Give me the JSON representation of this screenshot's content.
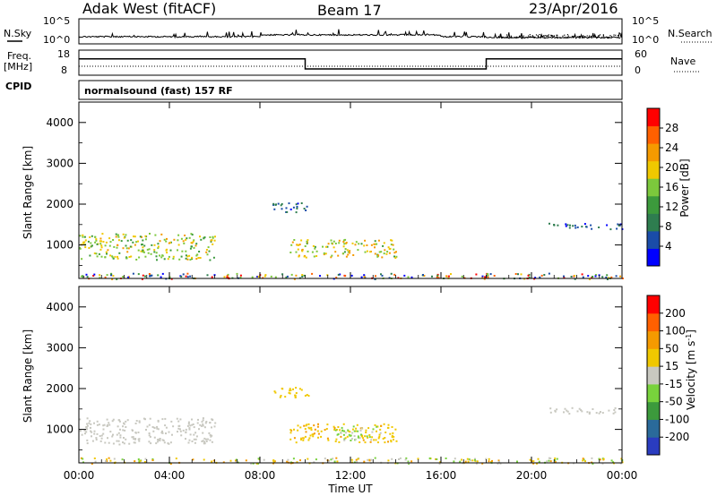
{
  "header": {
    "station": "Adak West (fitACF)",
    "beam": "Beam 17",
    "date": "23/Apr/2016"
  },
  "noise_panel": {
    "left_label": "N.Sky",
    "right_label": "N.Search",
    "tick_top": "10^5",
    "tick_bottom": "10^0"
  },
  "freq_panel": {
    "left_label_1": "Freq.",
    "left_label_2": "[MHz]",
    "right_label": "Nave",
    "left_ticks": [
      "18",
      "8"
    ],
    "right_ticks": [
      "60",
      "0"
    ]
  },
  "cpid": {
    "label": "CPID",
    "value": "normalsound (fast) 157 RF"
  },
  "power_panel": {
    "ylabel": "Slant Range [km]",
    "yticks": [
      "4000",
      "3000",
      "2000",
      "1000"
    ],
    "colorbar_title": "Power [dB]",
    "colorbar_ticks": [
      "28",
      "24",
      "20",
      "16",
      "12",
      "8",
      "4"
    ],
    "colors": [
      "#0000ff",
      "#1a4ca8",
      "#2e7d4f",
      "#3c9a3c",
      "#7cc83c",
      "#f0c800",
      "#f59a00",
      "#ff6000",
      "#ff0000"
    ]
  },
  "velocity_panel": {
    "ylabel": "Slant Range [km]",
    "yticks": [
      "4000",
      "3000",
      "2000",
      "1000"
    ],
    "colorbar_title": "Velocity [m s^-1]",
    "colorbar_ticks": [
      "200",
      "100",
      "50",
      "15",
      "-15",
      "-50",
      "-100",
      "-200"
    ],
    "colors": [
      "#2a3cc0",
      "#2a6a9a",
      "#3c9a3c",
      "#78d23c",
      "#c8c8c0",
      "#f0c800",
      "#f59a00",
      "#ff6000",
      "#ff0000"
    ]
  },
  "x_axis": {
    "label": "Time UT",
    "ticks": [
      "00:00",
      "04:00",
      "08:00",
      "12:00",
      "16:00",
      "20:00",
      "00:00"
    ]
  },
  "chart_data": [
    {
      "type": "line",
      "title": "Adak West (fitACF) Beam 17 23/Apr/2016",
      "xlabel": "Time UT",
      "xlim": [
        "00:00",
        "24:00"
      ],
      "series": [
        {
          "name": "N.Sky",
          "x": [
            0,
            4,
            8,
            12,
            16,
            18,
            20,
            24
          ],
          "y": [
            20,
            30,
            60,
            40,
            30,
            15,
            10,
            10
          ]
        }
      ],
      "ylim": [
        1,
        100000
      ],
      "log_y": true
    },
    {
      "type": "line",
      "xlabel": "Time UT",
      "series": [
        {
          "name": "Freq.",
          "x": [
            0,
            10,
            10,
            18,
            18,
            24
          ],
          "y": [
            14.5,
            14.5,
            10.5,
            10.5,
            14.5,
            14.5
          ]
        },
        {
          "name": "Nave",
          "x": [
            0,
            24
          ],
          "y": [
            15,
            15
          ]
        }
      ],
      "ylim": [
        8,
        18
      ]
    },
    {
      "type": "heatmap",
      "ylabel": "Slant Range [km]",
      "xlabel": "Time UT",
      "xlim": [
        0,
        24
      ],
      "ylim": [
        180,
        4500
      ],
      "colorbar": "Power [dB]",
      "colorbar_range": [
        0,
        30
      ],
      "regions": [
        {
          "t0": 0.0,
          "t1": 6.0,
          "r0": 650,
          "r1": 1300,
          "level": 16
        },
        {
          "t0": 9.3,
          "t1": 14.0,
          "r0": 700,
          "r1": 1150,
          "level": 18
        },
        {
          "t0": 8.5,
          "t1": 10.2,
          "r0": 1800,
          "r1": 2050,
          "level": 4
        },
        {
          "t0": 20.7,
          "t1": 24.0,
          "r0": 1400,
          "r1": 1550,
          "level": 4
        },
        {
          "t0": 0.0,
          "t1": 24.0,
          "r0": 180,
          "r1": 320,
          "level": 8
        }
      ]
    },
    {
      "type": "heatmap",
      "ylabel": "Slant Range [km]",
      "xlabel": "Time UT",
      "xlim": [
        0,
        24
      ],
      "ylim": [
        180,
        4500
      ],
      "colorbar": "Velocity [m s^-1]",
      "colorbar_range": [
        -200,
        200
      ],
      "regions": [
        {
          "t0": 0.0,
          "t1": 6.0,
          "r0": 650,
          "r1": 1300,
          "level": 0
        },
        {
          "t0": 9.3,
          "t1": 14.0,
          "r0": 700,
          "r1": 1150,
          "level": -40
        },
        {
          "t0": 11.3,
          "t1": 13.3,
          "r0": 750,
          "r1": 1100,
          "level": 20
        },
        {
          "t0": 8.5,
          "t1": 10.2,
          "r0": 1800,
          "r1": 2050,
          "level": -30
        },
        {
          "t0": 20.7,
          "t1": 24.0,
          "r0": 1400,
          "r1": 1550,
          "level": 0
        },
        {
          "t0": 0.0,
          "t1": 24.0,
          "r0": 180,
          "r1": 320,
          "level": -20
        }
      ]
    }
  ]
}
